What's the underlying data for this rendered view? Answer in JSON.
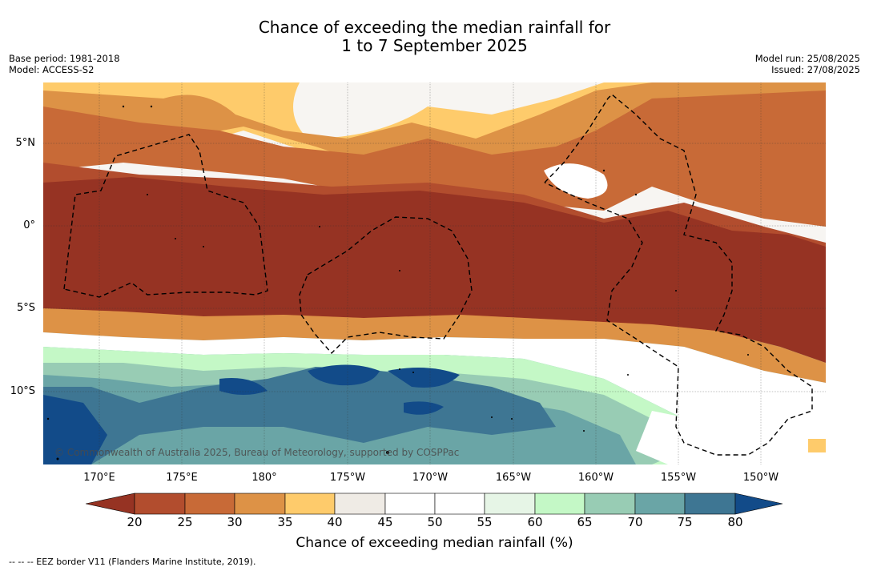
{
  "title": {
    "line1": "Chance of exceeding the median rainfall for",
    "line2": "1 to 7 September 2025"
  },
  "meta_left": {
    "base_period": "Base period: 1981-2018",
    "model": "Model: ACCESS-S2"
  },
  "meta_right": {
    "model_run": "Model run: 25/08/2025",
    "issued": "Issued: 27/08/2025"
  },
  "map": {
    "lat_labels": [
      "5°N",
      "0°",
      "5°S",
      "10°S"
    ],
    "lon_labels": [
      "170°E",
      "175°E",
      "180°",
      "175°W",
      "170°W",
      "165°W",
      "160°W",
      "155°W",
      "150°W"
    ],
    "credit": "© Commonwealth of Australia 2025, Bureau of Meteorology, supported by COSPPac",
    "colors": {
      "c20": "#963323",
      "c25": "#b24d2e",
      "c30": "#c86a37",
      "c35": "#dd9246",
      "c40": "#fecb6b",
      "c45": "#efebe5",
      "c50": "#ffffff",
      "c55": "#ffffff",
      "c60": "#e6f5e6",
      "c65": "#c4f8c6",
      "c70": "#98ccb4",
      "c75": "#6aa5a6",
      "c80": "#3e7693",
      "cmax": "#124b89"
    }
  },
  "colorbar": {
    "ticks": [
      "20",
      "25",
      "30",
      "35",
      "40",
      "45",
      "50",
      "55",
      "60",
      "65",
      "70",
      "75",
      "80"
    ],
    "label": "Chance of exceeding median rainfall (%)"
  },
  "footnote": "--  --  -- EEZ border V11 (Flanders Marine Institute, 2019)."
}
